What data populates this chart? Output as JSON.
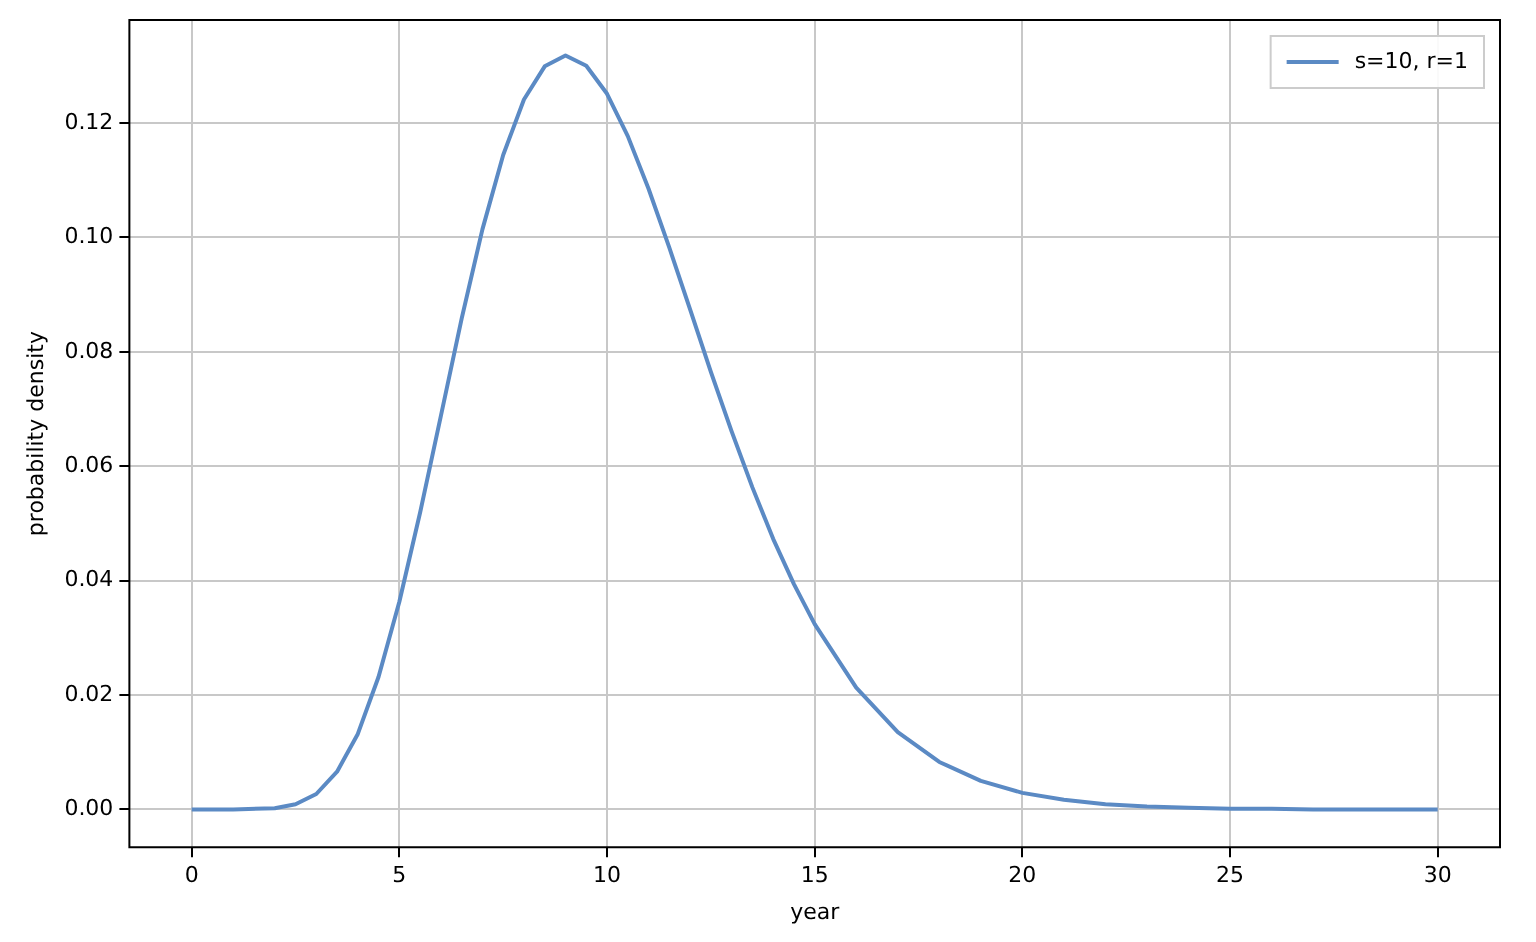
{
  "chart_data": {
    "type": "line",
    "xlabel": "year",
    "ylabel": "probability density",
    "xlim": [
      -1.5,
      31.5
    ],
    "ylim": [
      -0.0066,
      0.138
    ],
    "xticks": [
      0,
      5,
      10,
      15,
      20,
      25,
      30
    ],
    "yticks": [
      {
        "value": 0,
        "label": "0.00"
      },
      {
        "value": 0.02,
        "label": "0.02"
      },
      {
        "value": 0.04,
        "label": "0.04"
      },
      {
        "value": 0.06,
        "label": "0.06"
      },
      {
        "value": 0.08,
        "label": "0.08"
      },
      {
        "value": 0.1,
        "label": "0.10"
      },
      {
        "value": 0.12,
        "label": "0.12"
      }
    ],
    "grid": true,
    "legend": "top right",
    "marker": "none",
    "line_style": "solid",
    "series": [
      {
        "name": "s=10, r=1",
        "color": "#5b8ac4",
        "x": [
          0,
          1,
          2,
          2.5,
          3,
          3.5,
          4,
          4.5,
          5,
          5.5,
          6,
          6.5,
          7,
          7.5,
          8,
          8.5,
          9,
          9.5,
          10,
          10.5,
          11,
          11.5,
          12,
          12.5,
          13,
          13.5,
          14,
          14.5,
          15,
          16,
          17,
          18,
          19,
          20,
          21,
          22,
          23,
          24,
          25,
          26,
          27,
          28,
          29,
          30
        ],
        "values": [
          0,
          0,
          0.0002,
          0.0009,
          0.0027,
          0.0066,
          0.0132,
          0.0232,
          0.0363,
          0.0519,
          0.0688,
          0.0858,
          0.1014,
          0.1144,
          0.1241,
          0.1299,
          0.1318,
          0.13,
          0.1251,
          0.1177,
          0.1085,
          0.0982,
          0.0874,
          0.0765,
          0.0661,
          0.0563,
          0.0473,
          0.0394,
          0.0324,
          0.0213,
          0.0135,
          0.0083,
          0.005,
          0.0029,
          0.0017,
          0.0009,
          0.0005,
          0.0003,
          0.0001,
          0.0001,
          0,
          0,
          0,
          0
        ]
      }
    ]
  }
}
